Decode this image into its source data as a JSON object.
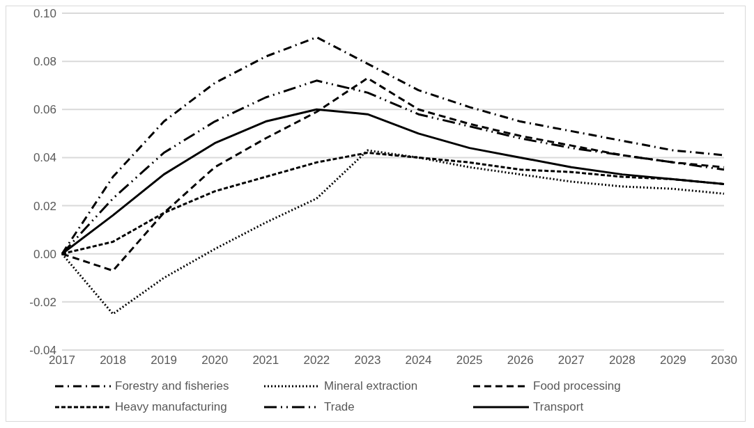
{
  "chart_data": {
    "type": "line",
    "categories": [
      "2017",
      "2018",
      "2019",
      "2020",
      "2021",
      "2022",
      "2023",
      "2024",
      "2025",
      "2026",
      "2027",
      "2028",
      "2029",
      "2030"
    ],
    "series": [
      {
        "name": "Forestry and fisheries",
        "color": "#000000",
        "line_style": "dashdot",
        "values": [
          0,
          0.032,
          0.055,
          0.071,
          0.082,
          0.09,
          0.079,
          0.068,
          0.061,
          0.055,
          0.051,
          0.047,
          0.043,
          0.041
        ]
      },
      {
        "name": "Mineral extraction",
        "color": "#000000",
        "line_style": "dotted",
        "values": [
          0,
          -0.025,
          -0.01,
          0.002,
          0.013,
          0.023,
          0.043,
          0.04,
          0.036,
          0.033,
          0.03,
          0.028,
          0.027,
          0.025
        ]
      },
      {
        "name": "Food processing",
        "color": "#000000",
        "line_style": "dashed",
        "values": [
          0,
          -0.007,
          0.017,
          0.036,
          0.048,
          0.059,
          0.073,
          0.06,
          0.054,
          0.049,
          0.045,
          0.041,
          0.038,
          0.036
        ]
      },
      {
        "name": "Heavy manufacturing",
        "color": "#000000",
        "line_style": "shortdash",
        "values": [
          0,
          0.005,
          0.017,
          0.026,
          0.032,
          0.038,
          0.042,
          0.04,
          0.038,
          0.035,
          0.034,
          0.032,
          0.031,
          0.029
        ]
      },
      {
        "name": "Trade",
        "color": "#000000",
        "line_style": "longdashdotdot",
        "values": [
          0,
          0.023,
          0.042,
          0.055,
          0.065,
          0.072,
          0.067,
          0.058,
          0.053,
          0.048,
          0.044,
          0.041,
          0.038,
          0.035
        ]
      },
      {
        "name": "Transport",
        "color": "#000000",
        "line_style": "solid",
        "values": [
          0,
          0.016,
          0.033,
          0.046,
          0.055,
          0.06,
          0.058,
          0.05,
          0.044,
          0.04,
          0.036,
          0.033,
          0.031,
          0.029
        ]
      }
    ],
    "ylim": [
      -0.04,
      0.1
    ],
    "yticks": [
      {
        "value": -0.04,
        "label": "-0.04"
      },
      {
        "value": -0.02,
        "label": "-0.02"
      },
      {
        "value": 0,
        "label": "0.00"
      },
      {
        "value": 0.02,
        "label": "0.02"
      },
      {
        "value": 0.04,
        "label": "0.04"
      },
      {
        "value": 0.06,
        "label": "0.06"
      },
      {
        "value": 0.08,
        "label": "0.08"
      },
      {
        "value": 0.1,
        "label": "0.10"
      }
    ],
    "grid": "y",
    "legend": "bottom",
    "marker": "none"
  }
}
